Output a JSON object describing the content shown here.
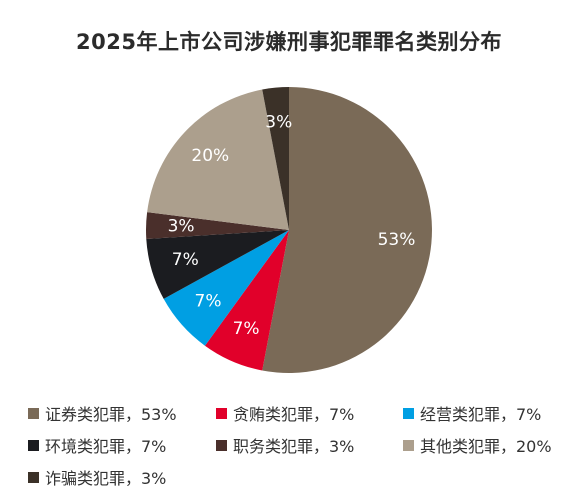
{
  "chart_data": {
    "type": "pie",
    "title": "2025年上市公司涉嫌刑事犯罪罪名类别分布",
    "slices": [
      {
        "label": "证券类犯罪",
        "value": 53,
        "display": "53%",
        "legend": "证券类犯罪，53%",
        "color": "#7a6a57"
      },
      {
        "label": "贪贿类犯罪",
        "value": 7,
        "display": "7%",
        "legend": "贪贿类犯罪，7%",
        "color": "#e1002a"
      },
      {
        "label": "经营类犯罪",
        "value": 7,
        "display": "7%",
        "legend": "经营类犯罪，7%",
        "color": "#009fe3"
      },
      {
        "label": "环境类犯罪",
        "value": 7,
        "display": "7%",
        "legend": "环境类犯罪，7%",
        "color": "#1b1c20"
      },
      {
        "label": "职务类犯罪",
        "value": 3,
        "display": "3%",
        "legend": "职务类犯罪，3%",
        "color": "#4a2f2b"
      },
      {
        "label": "其他类犯罪",
        "value": 20,
        "display": "20%",
        "legend": "其他类犯罪，20%",
        "color": "#ac9f8d"
      },
      {
        "label": "诈骗类犯罪",
        "value": 3,
        "display": "3%",
        "legend": "诈骗类犯罪，3%",
        "color": "#3b3128"
      }
    ],
    "legend_position": "bottom"
  }
}
